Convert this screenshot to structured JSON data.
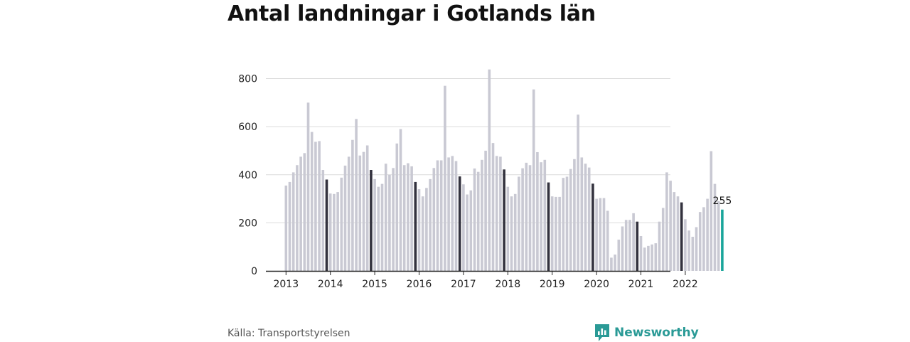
{
  "title": "Antal landningar i Gotlands län",
  "source": "Källa: Transportstyrelsen",
  "brand": "Newsworthy",
  "colors": {
    "bar": "#c9c9d3",
    "december": "#33323e",
    "latest": "#1aa59b",
    "grid": "#dcdcdc",
    "axis": "#222222",
    "brand": "#2a9a96"
  },
  "chart_data": {
    "type": "bar",
    "title": "Antal landningar i Gotlands län",
    "xlabel": "",
    "ylabel": "",
    "ylim": [
      0,
      840
    ],
    "yticks": [
      0,
      200,
      400,
      600,
      800
    ],
    "grid": true,
    "year_labels": [
      "2013",
      "2014",
      "2015",
      "2016",
      "2017",
      "2018",
      "2019",
      "2020",
      "2021",
      "2022"
    ],
    "start": "2013-01",
    "end": "2022-11",
    "latest_label": "255",
    "series": [
      {
        "values": [
          355,
          370,
          410,
          440,
          475,
          490,
          700,
          578,
          537,
          540,
          420,
          380,
          322,
          320,
          328,
          388,
          438,
          475,
          545,
          632,
          480,
          495,
          522,
          420,
          382,
          350,
          362,
          446,
          400,
          428,
          530,
          590,
          440,
          448,
          435,
          370,
          340,
          310,
          345,
          382,
          428,
          460,
          460,
          770,
          472,
          478,
          457,
          393,
          360,
          318,
          335,
          426,
          412,
          462,
          500,
          838,
          532,
          478,
          475,
          422,
          350,
          310,
          320,
          392,
          427,
          450,
          440,
          755,
          494,
          452,
          462,
          368,
          310,
          308,
          308,
          387,
          392,
          424,
          465,
          650,
          472,
          446,
          430,
          363,
          300,
          303,
          303,
          250,
          55,
          68,
          130,
          185,
          212,
          212,
          240,
          205,
          145,
          97,
          104,
          110,
          115,
          205,
          262,
          410,
          375,
          328,
          310,
          285,
          215,
          168,
          142,
          182,
          245,
          265,
          300,
          498,
          362,
          290,
          255
        ]
      }
    ]
  }
}
